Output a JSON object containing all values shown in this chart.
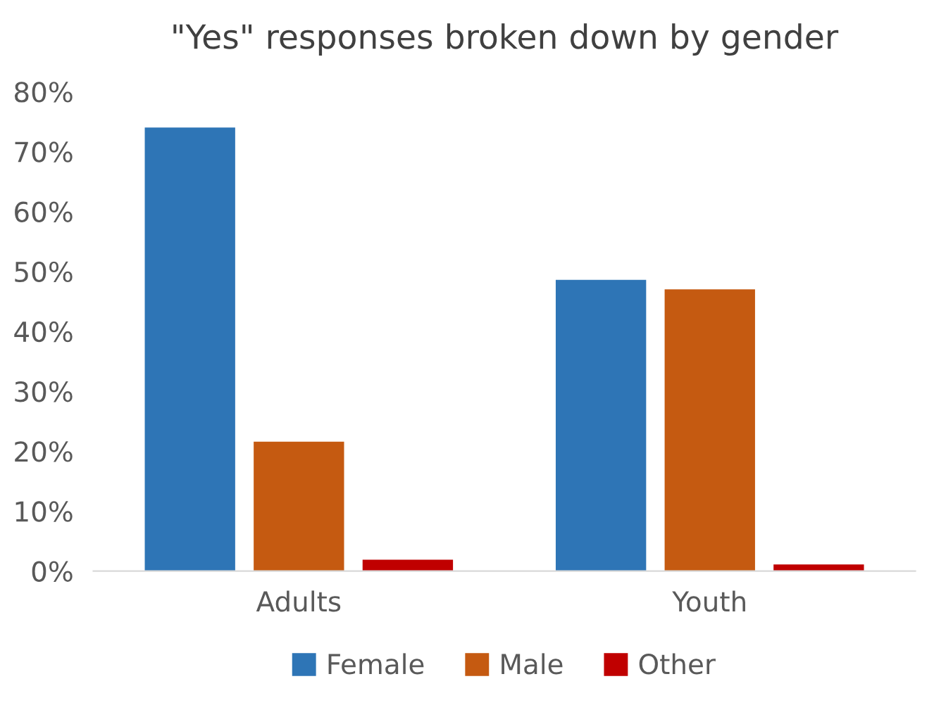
{
  "chart_data": {
    "type": "bar",
    "title": "\"Yes\" responses broken down by gender",
    "categories": [
      "Adults",
      "Youth"
    ],
    "series": [
      {
        "name": "Female",
        "color": "#2e75b6",
        "values": [
          74.0,
          48.6
        ]
      },
      {
        "name": "Male",
        "color": "#c55a11",
        "values": [
          21.6,
          47.0
        ]
      },
      {
        "name": "Other",
        "color": "#c00000",
        "values": [
          1.9,
          1.1
        ]
      }
    ],
    "ylim": [
      0,
      80
    ],
    "yticks": [
      {
        "value": 0,
        "label": "0%"
      },
      {
        "value": 10,
        "label": "10%"
      },
      {
        "value": 20,
        "label": "20%"
      },
      {
        "value": 30,
        "label": "30%"
      },
      {
        "value": 40,
        "label": "40%"
      },
      {
        "value": 50,
        "label": "50%"
      },
      {
        "value": 60,
        "label": "60%"
      },
      {
        "value": 70,
        "label": "70%"
      },
      {
        "value": 80,
        "label": "80%"
      }
    ],
    "grid": false,
    "legend": "bottom"
  }
}
